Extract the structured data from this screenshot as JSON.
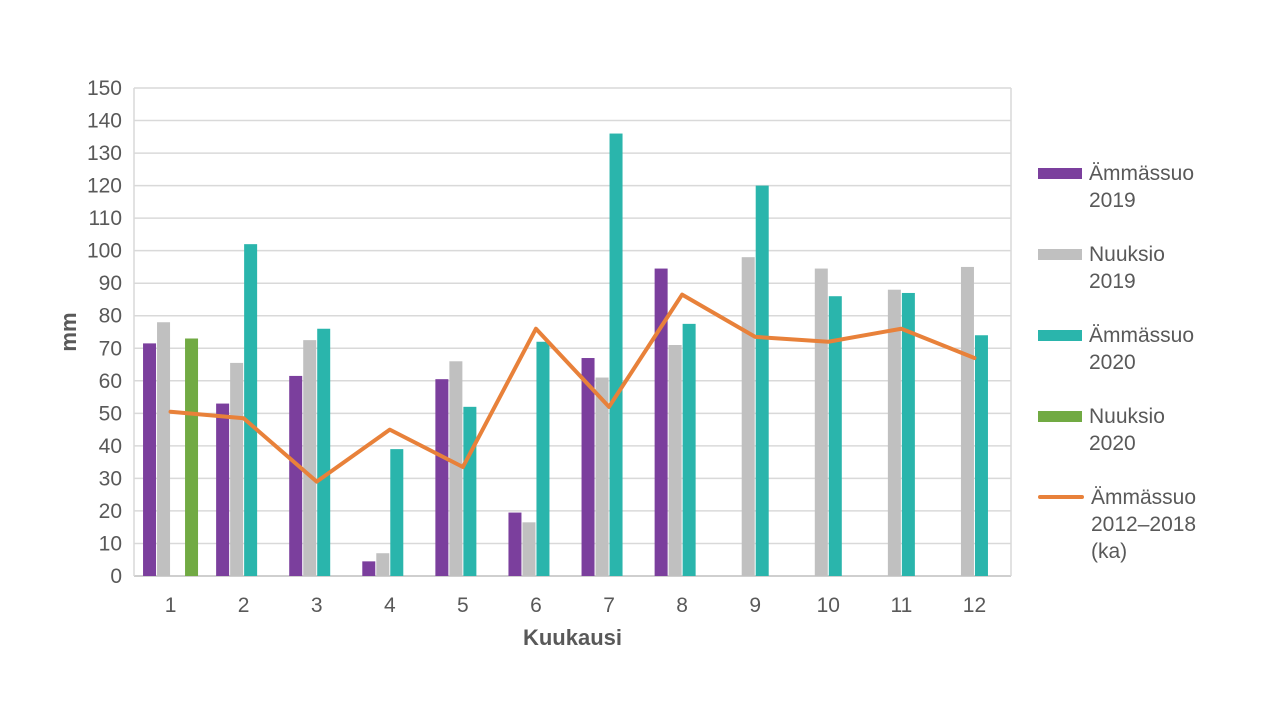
{
  "chart_data": {
    "type": "bar",
    "title": "",
    "xlabel": "Kuukausi",
    "ylabel": "mm",
    "ylim": [
      0,
      150
    ],
    "ytick_step": 10,
    "yticks": [
      0,
      10,
      20,
      30,
      40,
      50,
      60,
      70,
      80,
      90,
      100,
      110,
      120,
      130,
      140,
      150
    ],
    "grid": true,
    "legend_position": "right",
    "categories": [
      "1",
      "2",
      "3",
      "4",
      "5",
      "6",
      "7",
      "8",
      "9",
      "10",
      "11",
      "12"
    ],
    "series": [
      {
        "name": "Ämmässuo 2019",
        "type": "bar",
        "color": "#7B3F9D",
        "values": [
          71.5,
          53,
          61.5,
          4.5,
          60.5,
          19.5,
          67,
          94.5,
          null,
          null,
          null,
          null
        ]
      },
      {
        "name": "Nuuksio 2019",
        "type": "bar",
        "color": "#C0C0C0",
        "values": [
          78,
          65.5,
          72.5,
          7,
          66,
          16.5,
          61,
          71,
          98,
          94.5,
          88,
          95
        ]
      },
      {
        "name": "Ämmässuo 2020",
        "type": "bar",
        "color": "#2AB5AC",
        "values": [
          null,
          102,
          76,
          39,
          52,
          72,
          136,
          77.5,
          120,
          86,
          87,
          74
        ]
      },
      {
        "name": "Nuuksio 2020",
        "type": "bar",
        "color": "#71AA43",
        "values": [
          73,
          null,
          null,
          null,
          null,
          null,
          null,
          null,
          null,
          null,
          null,
          null
        ]
      },
      {
        "name": "Ämmässuo 2012–2018 (ka)",
        "type": "line",
        "color": "#E8813A",
        "values": [
          50.5,
          48.5,
          29,
          45,
          33.5,
          76,
          52,
          86.5,
          73.5,
          72,
          76,
          67
        ]
      }
    ]
  },
  "colors": {
    "background": "#FFFFFF",
    "text": "#595959",
    "gridline": "#D9D9D9",
    "axis_line": "#BFBFBF"
  }
}
